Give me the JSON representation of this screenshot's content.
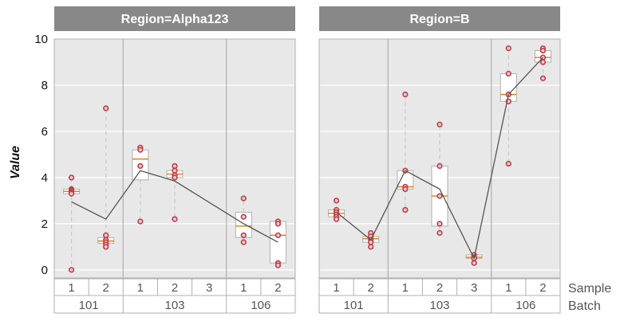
{
  "chart_data": {
    "type": "box",
    "ylabel": "Value",
    "ylim": [
      -0.35,
      10
    ],
    "yticks": [
      0,
      2,
      4,
      6,
      8,
      10
    ],
    "grid": true,
    "row_levels": [
      "Sample",
      "Batch"
    ],
    "facets": [
      {
        "title": "Region=Alpha123",
        "groups": [
          {
            "batch": "101",
            "samples": [
              {
                "sample": "1",
                "q1": 3.3,
                "median": 3.4,
                "q3": 3.5,
                "whisker_low": 3.2,
                "whisker_high": 4.0,
                "points": [
                  4.0,
                  3.5,
                  3.45,
                  3.4,
                  3.35,
                  3.3,
                  0.0
                ],
                "outlier_low": 0.0
              },
              {
                "sample": "2",
                "q1": 1.15,
                "median": 1.25,
                "q3": 1.4,
                "whisker_low": 1.0,
                "whisker_high": 1.5,
                "points": [
                  1.5,
                  1.3,
                  1.2,
                  1.1,
                  1.0,
                  7.0
                ],
                "outlier_high": 7.0
              }
            ]
          },
          {
            "batch": "103",
            "samples": [
              {
                "sample": "1",
                "q1": 3.9,
                "median": 4.8,
                "q3": 5.2,
                "whisker_low": 2.1,
                "whisker_high": 5.3,
                "points": [
                  5.3,
                  5.2,
                  4.5,
                  2.1
                ]
              },
              {
                "sample": "2",
                "q1": 4.0,
                "median": 4.15,
                "q3": 4.3,
                "whisker_low": 2.2,
                "whisker_high": 4.5,
                "points": [
                  4.5,
                  4.3,
                  4.1,
                  4.0,
                  2.2
                ]
              },
              {
                "sample": "3",
                "empty": true
              }
            ]
          },
          {
            "batch": "106",
            "samples": [
              {
                "sample": "1",
                "q1": 1.4,
                "median": 1.9,
                "q3": 2.5,
                "whisker_low": 1.2,
                "whisker_high": 3.1,
                "points": [
                  3.1,
                  2.3,
                  1.5,
                  1.2
                ]
              },
              {
                "sample": "2",
                "q1": 0.3,
                "median": 1.5,
                "q3": 2.1,
                "whisker_low": 0.2,
                "whisker_high": 2.1,
                "points": [
                  2.1,
                  2.0,
                  1.5,
                  0.3,
                  0.2
                ]
              }
            ]
          }
        ],
        "mean_line": [
          2.95,
          2.2,
          4.3,
          3.85,
          2.0,
          1.2
        ]
      },
      {
        "title": "Region=B",
        "groups": [
          {
            "batch": "101",
            "samples": [
              {
                "sample": "1",
                "q1": 2.3,
                "median": 2.45,
                "q3": 2.6,
                "whisker_low": 2.2,
                "whisker_high": 3.0,
                "points": [
                  3.0,
                  2.6,
                  2.5,
                  2.4,
                  2.3,
                  2.2
                ]
              },
              {
                "sample": "2",
                "q1": 1.2,
                "median": 1.35,
                "q3": 1.45,
                "whisker_low": 1.0,
                "whisker_high": 1.6,
                "points": [
                  1.6,
                  1.45,
                  1.3,
                  1.2,
                  1.0
                ]
              }
            ]
          },
          {
            "batch": "103",
            "samples": [
              {
                "sample": "1",
                "q1": 3.5,
                "median": 3.6,
                "q3": 4.3,
                "whisker_low": 2.6,
                "whisker_high": 7.6,
                "points": [
                  7.6,
                  4.3,
                  3.6,
                  3.5,
                  2.6
                ]
              },
              {
                "sample": "2",
                "q1": 1.9,
                "median": 3.2,
                "q3": 4.5,
                "whisker_low": 1.6,
                "whisker_high": 6.3,
                "points": [
                  6.3,
                  4.5,
                  3.2,
                  2.0,
                  1.6
                ]
              },
              {
                "sample": "3",
                "q1": 0.5,
                "median": 0.55,
                "q3": 0.65,
                "whisker_low": 0.3,
                "whisker_high": 0.65,
                "points": [
                  0.65,
                  0.55,
                  0.5,
                  0.3
                ]
              }
            ]
          },
          {
            "batch": "106",
            "samples": [
              {
                "sample": "1",
                "q1": 7.3,
                "median": 7.6,
                "q3": 8.5,
                "whisker_low": 4.6,
                "whisker_high": 9.6,
                "points": [
                  9.6,
                  8.5,
                  7.6,
                  7.3,
                  4.6
                ]
              },
              {
                "sample": "2",
                "q1": 9.0,
                "median": 9.2,
                "q3": 9.5,
                "whisker_low": 8.3,
                "whisker_high": 9.6,
                "points": [
                  9.6,
                  9.5,
                  9.2,
                  9.0,
                  8.3
                ]
              }
            ]
          }
        ],
        "mean_line": [
          2.5,
          1.3,
          4.3,
          3.5,
          0.5,
          7.6,
          9.2
        ]
      }
    ],
    "colors": {
      "strip_bg": "#888888",
      "panel_bg": "#e8e8e8",
      "grid": "#ffffff",
      "separator": "#b0b0b0",
      "box_fill": "#ffffff",
      "box_edge": "#b0b0b0",
      "median": "#e07b00",
      "point_edge": "#c0404a",
      "point_fill": "#ead0d0",
      "mean_line": "#555555",
      "whisker": "#c8c8c8"
    }
  }
}
